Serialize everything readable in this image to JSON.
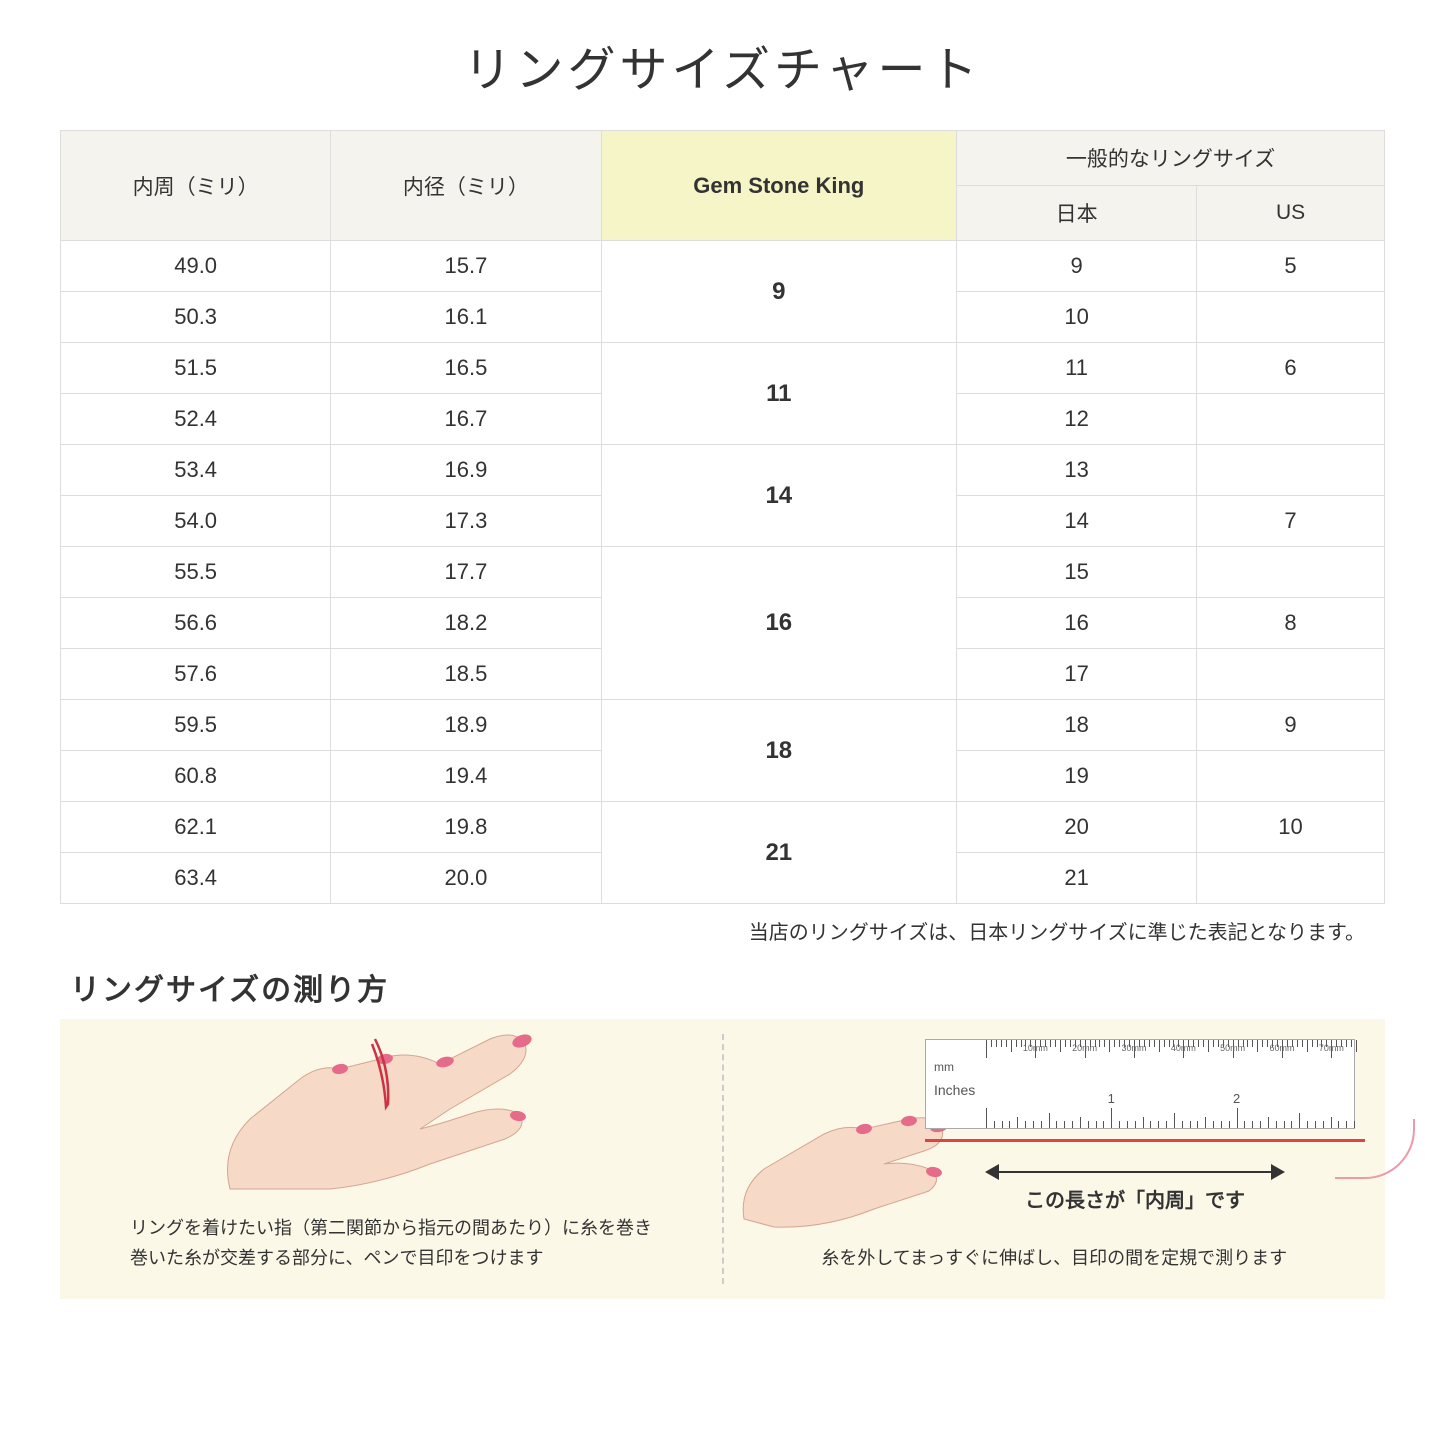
{
  "title": "リングサイズチャート",
  "headers": {
    "circumference": "内周（ミリ）",
    "diameter": "内径（ミリ）",
    "gsk": "Gem Stone King",
    "general": "一般的なリングサイズ",
    "japan": "日本",
    "us": "US"
  },
  "groups": [
    {
      "gsk": "9",
      "rows": [
        {
          "c": "49.0",
          "d": "15.7",
          "jp": "9",
          "us": "5"
        },
        {
          "c": "50.3",
          "d": "16.1",
          "jp": "10",
          "us": ""
        }
      ]
    },
    {
      "gsk": "11",
      "rows": [
        {
          "c": "51.5",
          "d": "16.5",
          "jp": "11",
          "us": "6"
        },
        {
          "c": "52.4",
          "d": "16.7",
          "jp": "12",
          "us": ""
        }
      ]
    },
    {
      "gsk": "14",
      "rows": [
        {
          "c": "53.4",
          "d": "16.9",
          "jp": "13",
          "us": ""
        },
        {
          "c": "54.0",
          "d": "17.3",
          "jp": "14",
          "us": "7"
        }
      ]
    },
    {
      "gsk": "16",
      "rows": [
        {
          "c": "55.5",
          "d": "17.7",
          "jp": "15",
          "us": ""
        },
        {
          "c": "56.6",
          "d": "18.2",
          "jp": "16",
          "us": "8"
        },
        {
          "c": "57.6",
          "d": "18.5",
          "jp": "17",
          "us": ""
        }
      ]
    },
    {
      "gsk": "18",
      "rows": [
        {
          "c": "59.5",
          "d": "18.9",
          "jp": "18",
          "us": "9"
        },
        {
          "c": "60.8",
          "d": "19.4",
          "jp": "19",
          "us": ""
        }
      ]
    },
    {
      "gsk": "21",
      "rows": [
        {
          "c": "62.1",
          "d": "19.8",
          "jp": "20",
          "us": "10"
        },
        {
          "c": "63.4",
          "d": "20.0",
          "jp": "21",
          "us": ""
        }
      ]
    }
  ],
  "note": "当店のリングサイズは、日本リングサイズに準じた表記となります。",
  "howto": {
    "title": "リングサイズの測り方",
    "left_text": "リングを着けたい指（第二関節から指元の間あたり）に糸を巻き\n巻いた糸が交差する部分に、ペンで目印をつけます",
    "right_text": "糸を外してまっすぐに伸ばし、目印の間を定規で測ります",
    "arrow_label": "この長さが「内周」です",
    "ruler_mm": "mm",
    "ruler_in": "Inches",
    "ruler_mm_labels": [
      "10mm",
      "20mm",
      "30mm",
      "40mm",
      "50mm",
      "60mm",
      "70mm"
    ],
    "ruler_in_labels": [
      "1",
      "2"
    ]
  },
  "colors": {
    "header_bg": "#f5f3ee",
    "gsk_bg": "#f6f5c8",
    "howto_bg": "#fbf8e8",
    "skin": "#f7d9c8",
    "nail": "#e56b8a",
    "thread": "#cc3344"
  }
}
